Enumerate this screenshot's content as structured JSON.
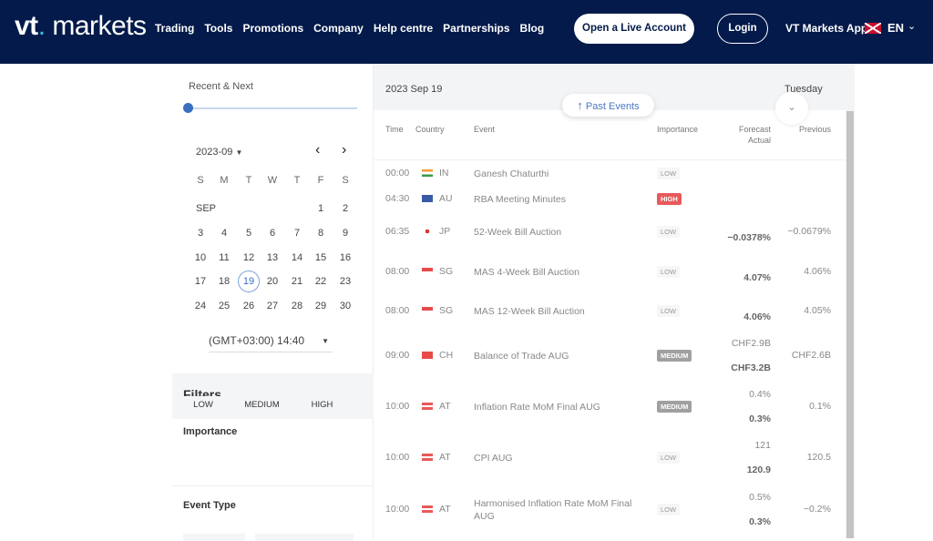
{
  "header": {
    "logo": "vt markets",
    "nav": [
      "Trading",
      "Tools",
      "Promotions",
      "Company",
      "Help centre",
      "Partnerships",
      "Blog"
    ],
    "open_account": "Open a Live Account",
    "login": "Login",
    "app": "VT Markets App",
    "language": "EN"
  },
  "sidebar": {
    "range_label": "Recent & Next",
    "slider_value": 0,
    "month": "2023-09",
    "weekdays": [
      "S",
      "M",
      "T",
      "W",
      "T",
      "F",
      "S"
    ],
    "month_label": "SEP",
    "weeks": [
      [
        "",
        "",
        "",
        "",
        "",
        "1",
        "2"
      ],
      [
        "3",
        "4",
        "5",
        "6",
        "7",
        "8",
        "9"
      ],
      [
        "10",
        "11",
        "12",
        "13",
        "14",
        "15",
        "16"
      ],
      [
        "17",
        "18",
        "19",
        "20",
        "21",
        "22",
        "23"
      ],
      [
        "24",
        "25",
        "26",
        "27",
        "28",
        "29",
        "30"
      ]
    ],
    "selected_day": "19",
    "timezone": "(GMT+03:00) 14:40",
    "filters_title": "Filters",
    "importance_label": "Importance",
    "importance_options": [
      "LOW",
      "MEDIUM",
      "HIGH"
    ],
    "event_type_label": "Event Type"
  },
  "main": {
    "date": "2023 Sep 19",
    "weekday": "Tuesday",
    "past_events": "Past Events",
    "columns": {
      "time": "Time",
      "country": "Country",
      "event": "Event",
      "importance": "Importance",
      "forecast": "Forecast",
      "actual": "Actual",
      "previous": "Previous"
    },
    "rows": [
      {
        "time": "00:00",
        "flag": "in",
        "country": "IN",
        "event": "Ganesh Chaturthi",
        "importance": "LOW",
        "forecast": "",
        "actual": "",
        "previous": ""
      },
      {
        "time": "04:30",
        "flag": "au",
        "country": "AU",
        "event": "RBA Meeting Minutes",
        "importance": "HIGH",
        "forecast": "",
        "actual": "",
        "previous": ""
      },
      {
        "time": "06:35",
        "flag": "jp",
        "country": "JP",
        "event": "52-Week Bill Auction",
        "importance": "LOW",
        "forecast": "",
        "actual": "−0.0378%",
        "previous": "−0.0679%"
      },
      {
        "time": "08:00",
        "flag": "sg",
        "country": "SG",
        "event": "MAS 4-Week Bill Auction",
        "importance": "LOW",
        "forecast": "",
        "actual": "4.07%",
        "previous": "4.06%"
      },
      {
        "time": "08:00",
        "flag": "sg",
        "country": "SG",
        "event": "MAS 12-Week Bill Auction",
        "importance": "LOW",
        "forecast": "",
        "actual": "4.06%",
        "previous": "4.05%"
      },
      {
        "time": "09:00",
        "flag": "ch",
        "country": "CH",
        "event": "Balance of Trade AUG",
        "importance": "MEDIUM",
        "forecast": "CHF2.9B",
        "actual": "CHF3.2B",
        "previous": "CHF2.6B"
      },
      {
        "time": "10:00",
        "flag": "at",
        "country": "AT",
        "event": "Inflation Rate MoM Final AUG",
        "importance": "MEDIUM",
        "forecast": "0.4%",
        "actual": "0.3%",
        "previous": "0.1%"
      },
      {
        "time": "10:00",
        "flag": "at",
        "country": "AT",
        "event": "CPI AUG",
        "importance": "LOW",
        "forecast": "121",
        "actual": "120.9",
        "previous": "120.5"
      },
      {
        "time": "10:00",
        "flag": "at",
        "country": "AT",
        "event": "Harmonised Inflation Rate MoM Final AUG",
        "importance": "LOW",
        "forecast": "0.5%",
        "actual": "0.3%",
        "previous": "−0.2%"
      }
    ]
  }
}
